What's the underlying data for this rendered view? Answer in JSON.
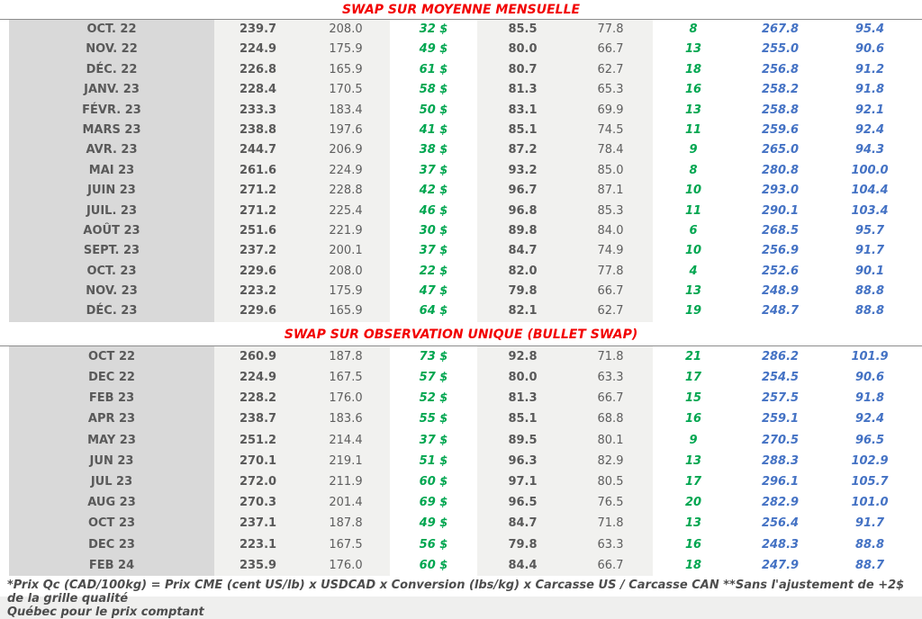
{
  "sections": [
    {
      "title": "SWAP SUR MOYENNE MENSUELLE",
      "rows": [
        [
          "OCT. 22",
          "239.7",
          "208.0",
          "32 $",
          "85.5",
          "77.8",
          "8",
          "267.8",
          "95.4"
        ],
        [
          "NOV. 22",
          "224.9",
          "175.9",
          "49 $",
          "80.0",
          "66.7",
          "13",
          "255.0",
          "90.6"
        ],
        [
          "DÉC. 22",
          "226.8",
          "165.9",
          "61 $",
          "80.7",
          "62.7",
          "18",
          "256.8",
          "91.2"
        ],
        [
          "JANV. 23",
          "228.4",
          "170.5",
          "58 $",
          "81.3",
          "65.3",
          "16",
          "258.2",
          "91.8"
        ],
        [
          "FÉVR. 23",
          "233.3",
          "183.4",
          "50 $",
          "83.1",
          "69.9",
          "13",
          "258.8",
          "92.1"
        ],
        [
          "MARS 23",
          "238.8",
          "197.6",
          "41 $",
          "85.1",
          "74.5",
          "11",
          "259.6",
          "92.4"
        ],
        [
          "AVR. 23",
          "244.7",
          "206.9",
          "38 $",
          "87.2",
          "78.4",
          "9",
          "265.0",
          "94.3"
        ],
        [
          "MAI 23",
          "261.6",
          "224.9",
          "37 $",
          "93.2",
          "85.0",
          "8",
          "280.8",
          "100.0"
        ],
        [
          "JUIN 23",
          "271.2",
          "228.8",
          "42 $",
          "96.7",
          "87.1",
          "10",
          "293.0",
          "104.4"
        ],
        [
          "JUIL. 23",
          "271.2",
          "225.4",
          "46 $",
          "96.8",
          "85.3",
          "11",
          "290.1",
          "103.4"
        ],
        [
          "AOÛT 23",
          "251.6",
          "221.9",
          "30 $",
          "89.8",
          "84.0",
          "6",
          "268.5",
          "95.7"
        ],
        [
          "SEPT. 23",
          "237.2",
          "200.1",
          "37 $",
          "84.7",
          "74.9",
          "10",
          "256.9",
          "91.7"
        ],
        [
          "OCT. 23",
          "229.6",
          "208.0",
          "22 $",
          "82.0",
          "77.8",
          "4",
          "252.6",
          "90.1"
        ],
        [
          "NOV. 23",
          "223.2",
          "175.9",
          "47 $",
          "79.8",
          "66.7",
          "13",
          "248.9",
          "88.8"
        ],
        [
          "DÉC. 23",
          "229.6",
          "165.9",
          "64 $",
          "82.1",
          "62.7",
          "19",
          "248.7",
          "88.8"
        ]
      ]
    },
    {
      "title": "SWAP SUR OBSERVATION UNIQUE (BULLET SWAP)",
      "rows": [
        [
          "OCT 22",
          "260.9",
          "187.8",
          "73 $",
          "92.8",
          "71.8",
          "21",
          "286.2",
          "101.9"
        ],
        [
          "DEC 22",
          "224.9",
          "167.5",
          "57 $",
          "80.0",
          "63.3",
          "17",
          "254.5",
          "90.6"
        ],
        [
          "FEB 23",
          "228.2",
          "176.0",
          "52 $",
          "81.3",
          "66.7",
          "15",
          "257.5",
          "91.8"
        ],
        [
          "APR 23",
          "238.7",
          "183.6",
          "55 $",
          "85.1",
          "68.8",
          "16",
          "259.1",
          "92.4"
        ],
        [
          "MAY 23",
          "251.2",
          "214.4",
          "37 $",
          "89.5",
          "80.1",
          "9",
          "270.5",
          "96.5"
        ],
        [
          "JUN 23",
          "270.1",
          "219.1",
          "51 $",
          "96.3",
          "82.9",
          "13",
          "288.3",
          "102.9"
        ],
        [
          "JUL 23",
          "272.0",
          "211.9",
          "60 $",
          "97.1",
          "80.5",
          "17",
          "296.1",
          "105.7"
        ],
        [
          "AUG 23",
          "270.3",
          "201.4",
          "69 $",
          "96.5",
          "76.5",
          "20",
          "282.9",
          "101.0"
        ],
        [
          "OCT 23",
          "237.1",
          "187.8",
          "49 $",
          "84.7",
          "71.8",
          "13",
          "256.4",
          "91.7"
        ],
        [
          "DEC 23",
          "223.1",
          "167.5",
          "56 $",
          "79.8",
          "63.3",
          "16",
          "248.3",
          "88.8"
        ],
        [
          "FEB 24",
          "235.9",
          "176.0",
          "60 $",
          "84.4",
          "66.7",
          "18",
          "247.9",
          "88.7"
        ]
      ]
    }
  ],
  "footnote": {
    "line1": "*Prix Qc (CAD/100kg) = Prix CME (cent US/lb) x USDCAD x Conversion (lbs/kg) x Carcasse US / Carcasse CAN **Sans l'ajustement de +2$ de la grille qualité",
    "line2": "Québec pour le prix comptant"
  },
  "colors": {
    "title_red": "#f20000",
    "positive_green": "#00a650",
    "swap_blue": "#4472c4",
    "month_col_gray": "#d9d9d9",
    "alt_col_gray": "#f1f1ef"
  }
}
